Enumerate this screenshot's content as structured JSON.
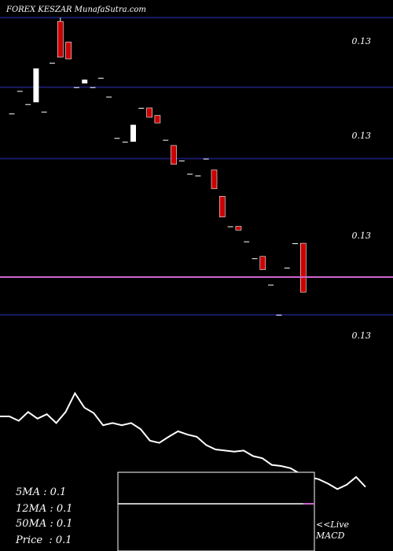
{
  "header": {
    "title": "FOREX  KESZAR MunafaSutra.com"
  },
  "price_levels": [
    "0.13",
    "0.13",
    "0.13",
    "0.13"
  ],
  "stats": [
    {
      "label": "5MA",
      "value": "0.1"
    },
    {
      "label": "12MA",
      "value": "0.1"
    },
    {
      "label": "50MA",
      "value": "0.1"
    },
    {
      "label": "Price  ",
      "value": "0.1"
    }
  ],
  "macd": {
    "live": "<<Live",
    "name": "MACD"
  },
  "colors": {
    "background": "#000000",
    "gridline": "#1a1a66",
    "bearish": "#cc0000",
    "bullish": "#ffffff",
    "current_price": "#cc66cc",
    "line": "#ffffff"
  },
  "chart_data": {
    "type": "candlestick",
    "ylim": [
      0.1287,
      0.1305
    ],
    "candles": [
      {
        "o": 0.12998,
        "h": 0.12998,
        "l": 0.12998,
        "c": 0.12998
      },
      {
        "o": 0.1301,
        "h": 0.1301,
        "l": 0.1301,
        "c": 0.1301
      },
      {
        "o": 0.13003,
        "h": 0.13003,
        "l": 0.13003,
        "c": 0.13003
      },
      {
        "o": 0.13004,
        "h": 0.13022,
        "l": 0.13004,
        "c": 0.13022
      },
      {
        "o": 0.12999,
        "h": 0.12999,
        "l": 0.12999,
        "c": 0.12999
      },
      {
        "o": 0.13025,
        "h": 0.13025,
        "l": 0.13025,
        "c": 0.13025
      },
      {
        "o": 0.13047,
        "h": 0.13049,
        "l": 0.13028,
        "c": 0.13028
      },
      {
        "o": 0.13036,
        "h": 0.13036,
        "l": 0.13027,
        "c": 0.13027
      },
      {
        "o": 0.13012,
        "h": 0.13012,
        "l": 0.13012,
        "c": 0.13012
      },
      {
        "o": 0.13014,
        "h": 0.13016,
        "l": 0.13014,
        "c": 0.13016
      },
      {
        "o": 0.13012,
        "h": 0.13012,
        "l": 0.13012,
        "c": 0.13012
      },
      {
        "o": 0.13017,
        "h": 0.13017,
        "l": 0.13017,
        "c": 0.13017
      },
      {
        "o": 0.13007,
        "h": 0.13007,
        "l": 0.13007,
        "c": 0.13007
      },
      {
        "o": 0.12985,
        "h": 0.12985,
        "l": 0.12985,
        "c": 0.12985
      },
      {
        "o": 0.12983,
        "h": 0.12983,
        "l": 0.12983,
        "c": 0.12983
      },
      {
        "o": 0.12983,
        "h": 0.12992,
        "l": 0.12983,
        "c": 0.12992
      },
      {
        "o": 0.13001,
        "h": 0.13001,
        "l": 0.13001,
        "c": 0.13001
      },
      {
        "o": 0.13001,
        "h": 0.13001,
        "l": 0.12996,
        "c": 0.12996
      },
      {
        "o": 0.12997,
        "h": 0.12997,
        "l": 0.12993,
        "c": 0.12993
      },
      {
        "o": 0.12984,
        "h": 0.12984,
        "l": 0.12984,
        "c": 0.12984
      },
      {
        "o": 0.12981,
        "h": 0.12981,
        "l": 0.12971,
        "c": 0.12971
      },
      {
        "o": 0.12973,
        "h": 0.12973,
        "l": 0.12973,
        "c": 0.12973
      },
      {
        "o": 0.12966,
        "h": 0.12966,
        "l": 0.12966,
        "c": 0.12966
      },
      {
        "o": 0.12965,
        "h": 0.12965,
        "l": 0.12965,
        "c": 0.12965
      },
      {
        "o": 0.12974,
        "h": 0.12974,
        "l": 0.12974,
        "c": 0.12974
      },
      {
        "o": 0.12968,
        "h": 0.12968,
        "l": 0.12958,
        "c": 0.12958
      },
      {
        "o": 0.12954,
        "h": 0.12954,
        "l": 0.12943,
        "c": 0.12943
      },
      {
        "o": 0.12938,
        "h": 0.12938,
        "l": 0.12938,
        "c": 0.12938
      },
      {
        "o": 0.12938,
        "h": 0.12938,
        "l": 0.12936,
        "c": 0.12936
      },
      {
        "o": 0.1293,
        "h": 0.1293,
        "l": 0.1293,
        "c": 0.1293
      },
      {
        "o": 0.12921,
        "h": 0.12921,
        "l": 0.12921,
        "c": 0.12921
      },
      {
        "o": 0.12922,
        "h": 0.12922,
        "l": 0.12915,
        "c": 0.12915
      },
      {
        "o": 0.12907,
        "h": 0.12907,
        "l": 0.12907,
        "c": 0.12907
      },
      {
        "o": 0.12891,
        "h": 0.12891,
        "l": 0.12891,
        "c": 0.12891
      },
      {
        "o": 0.12916,
        "h": 0.12916,
        "l": 0.12916,
        "c": 0.12916
      },
      {
        "o": 0.12929,
        "h": 0.12929,
        "l": 0.12929,
        "c": 0.12929
      },
      {
        "o": 0.12929,
        "h": 0.12929,
        "l": 0.12903,
        "c": 0.12903
      }
    ],
    "gridlines": [
      0.13049,
      0.13012,
      0.12974,
      0.12891
    ],
    "current_price": 0.12911,
    "oscillator": {
      "ylim": [
        -1,
        1
      ],
      "values": [
        0.3,
        0.3,
        0.22,
        0.38,
        0.26,
        0.34,
        0.18,
        0.38,
        0.72,
        0.46,
        0.36,
        0.14,
        0.18,
        0.14,
        0.18,
        0.07,
        -0.14,
        -0.18,
        -0.07,
        0.03,
        -0.03,
        -0.07,
        -0.22,
        -0.3,
        -0.32,
        -0.34,
        -0.32,
        -0.42,
        -0.46,
        -0.58,
        -0.6,
        -0.64,
        -0.74,
        -0.8,
        -0.84,
        -0.92,
        -1.02,
        -0.94,
        -0.8,
        -0.98
      ]
    },
    "macd_box": {
      "ylim": [
        -1,
        1
      ],
      "line": [
        0.2,
        0.2,
        0.2,
        0.2,
        0.2,
        0.2,
        0.2,
        0.2,
        0.2,
        0.2,
        0.2,
        0.2,
        0.2,
        0.2,
        0.2,
        0.2,
        0.2,
        0.2,
        0.2,
        0.2
      ],
      "signal": [
        0.2
      ]
    }
  }
}
